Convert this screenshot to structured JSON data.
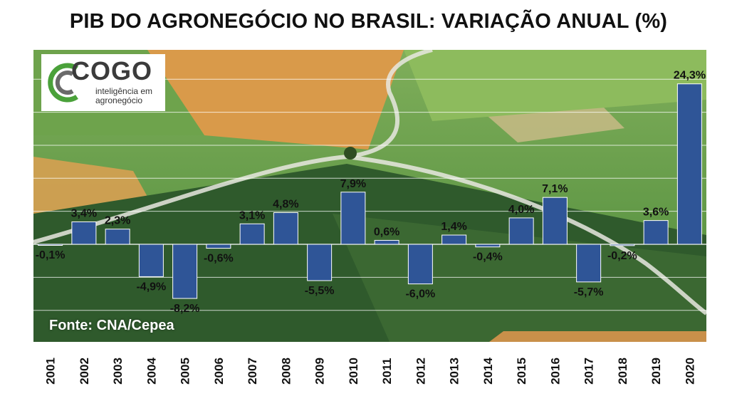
{
  "title": "PIB DO AGRONEGÓCIO NO BRASIL: VARIAÇÃO ANUAL (%)",
  "logo": {
    "word": "COGO",
    "tagline_1": "inteligência em",
    "tagline_2": "agronegócio"
  },
  "source": "Fonte: CNA/Cepea",
  "colors": {
    "bar": "#2f5597",
    "bar_stroke": "#ffffff",
    "grid": "#ffffff"
  },
  "chart_data": {
    "type": "bar",
    "categories": [
      "2001",
      "2002",
      "2003",
      "2004",
      "2005",
      "2006",
      "2007",
      "2008",
      "2009",
      "2010",
      "2011",
      "2012",
      "2013",
      "2014",
      "2015",
      "2016",
      "2017",
      "2018",
      "2019",
      "2020"
    ],
    "values": [
      -0.1,
      3.4,
      2.3,
      -4.9,
      -8.2,
      -0.6,
      3.1,
      4.8,
      -5.5,
      7.9,
      0.6,
      -6.0,
      1.4,
      -0.4,
      4.0,
      7.1,
      -5.7,
      -0.2,
      3.6,
      24.3
    ],
    "labels": [
      "-0,1%",
      "3,4%",
      "2,3%",
      "-4,9%",
      "-8,2%",
      "-0,6%",
      "3,1%",
      "4,8%",
      "-5,5%",
      "7,9%",
      "0,6%",
      "-6,0%",
      "1,4%",
      "-0,4%",
      "4,0%",
      "7,1%",
      "-5,7%",
      "-0,2%",
      "3,6%",
      "24,3%"
    ],
    "title": "PIB DO AGRONEGÓCIO NO BRASIL: VARIAÇÃO ANUAL (%)",
    "xlabel": "",
    "ylabel": "",
    "ylim": [
      -15,
      30
    ],
    "grid": true,
    "legend": "none"
  }
}
